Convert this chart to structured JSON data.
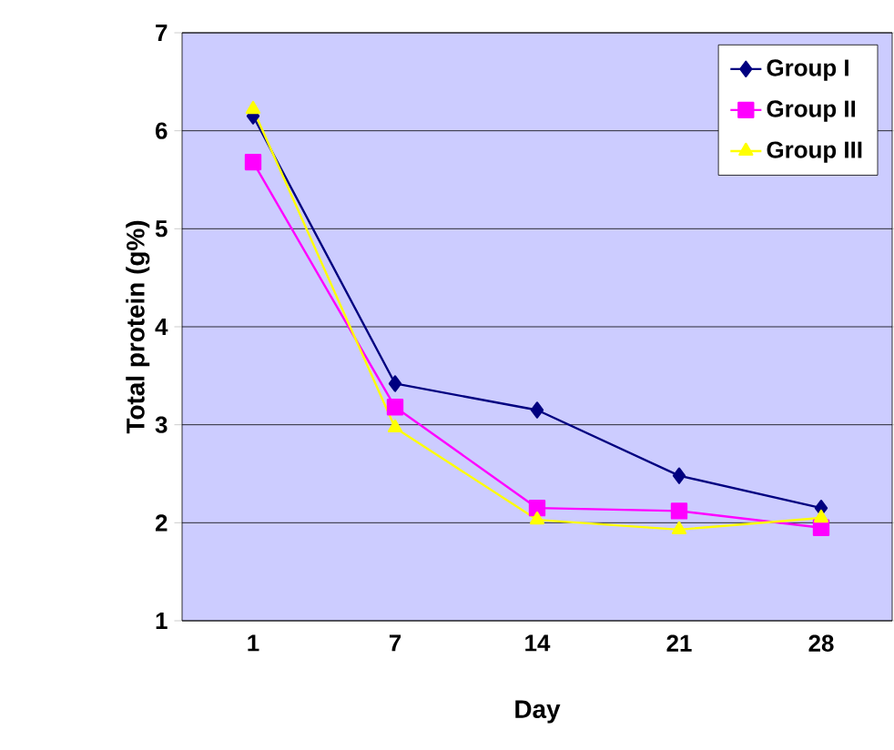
{
  "chart_data": {
    "type": "line",
    "xlabel": "Day",
    "ylabel": "Total protein (g%)",
    "categories": [
      "1",
      "7",
      "14",
      "21",
      "28"
    ],
    "ylim": [
      1,
      7
    ],
    "yticks": [
      1,
      2,
      3,
      4,
      5,
      6,
      7
    ],
    "grid": "y",
    "legend": "top right",
    "series": [
      {
        "name": "Group I",
        "color": "#000080",
        "marker": "diamond",
        "values": [
          6.15,
          3.42,
          3.15,
          2.48,
          2.15
        ]
      },
      {
        "name": "Group II",
        "color": "#ff00ff",
        "marker": "square",
        "values": [
          5.68,
          3.18,
          2.15,
          2.12,
          1.95
        ]
      },
      {
        "name": "Group III",
        "color": "#ffff00",
        "marker": "triangle",
        "values": [
          6.22,
          2.97,
          2.03,
          1.93,
          2.05
        ]
      }
    ]
  }
}
